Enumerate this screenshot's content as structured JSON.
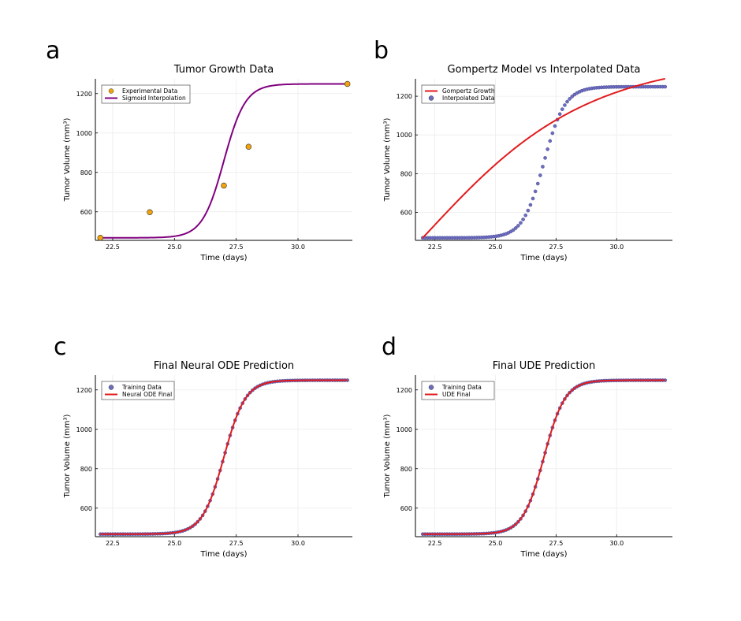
{
  "panels": [
    {
      "letter": "a"
    },
    {
      "letter": "b"
    },
    {
      "letter": "c"
    },
    {
      "letter": "d"
    }
  ],
  "colors": {
    "orange": "#f0a30a",
    "purple": "#800080",
    "red": "#e31a1c",
    "dot": "#6c6cc0",
    "grid": "#ececec"
  },
  "chart_data": [
    {
      "type": "line",
      "title": "Tumor Growth Data",
      "xlabel": "Time (days)",
      "ylabel": "Tumor Volume (mm³)",
      "xlim": [
        21.8,
        32.2
      ],
      "ylim": [
        455,
        1275
      ],
      "xticks": [
        22.5,
        25.0,
        27.5,
        30.0
      ],
      "xtick_labels": [
        "22.5",
        "25.0",
        "27.5",
        "30.0"
      ],
      "yticks": [
        600,
        800,
        1000,
        1200
      ],
      "ytick_labels": [
        "600",
        "800",
        "1000",
        "1200"
      ],
      "grid": true,
      "legend_position": "top-left",
      "series": [
        {
          "name": "Experimental Data",
          "kind": "scatter",
          "color": "#f0a30a",
          "x": [
            22,
            24,
            27,
            28,
            32
          ],
          "y": [
            468,
            598,
            733,
            930,
            1249
          ]
        },
        {
          "name": "Sigmoid Interpolation",
          "kind": "line",
          "color": "#800080",
          "curve": {
            "lower": 468,
            "upper": 1249,
            "midpoint": 27.0,
            "rate": 2.3,
            "x_start": 22,
            "x_end": 32,
            "points": 120
          }
        }
      ]
    },
    {
      "type": "line",
      "title": "Gompertz Model vs Interpolated Data",
      "xlabel": "Time (days)",
      "ylabel": "Tumor Volume (mm³)",
      "xlim": [
        21.7,
        32.3
      ],
      "ylim": [
        455,
        1290
      ],
      "xticks": [
        22.5,
        25.0,
        27.5,
        30.0
      ],
      "xtick_labels": [
        "22.5",
        "25.0",
        "27.5",
        "30.0"
      ],
      "yticks": [
        600,
        800,
        1000,
        1200
      ],
      "ytick_labels": [
        "600",
        "800",
        "1000",
        "1200"
      ],
      "grid": true,
      "legend_position": "top-left",
      "series": [
        {
          "name": "Gompertz Growth",
          "kind": "line",
          "color": "#e31a1c",
          "curve": {
            "model": "gompertz",
            "V0": 468,
            "K": 1400,
            "b": 0.26,
            "x_start": 22,
            "x_end": 32,
            "points": 120
          }
        },
        {
          "name": "Interpolated Data",
          "kind": "scatter",
          "color": "#6c6cc0",
          "curve": {
            "lower": 468,
            "upper": 1249,
            "midpoint": 27.0,
            "rate": 2.3,
            "x_start": 22,
            "x_end": 32,
            "points": 100
          }
        }
      ]
    },
    {
      "type": "line",
      "title": "Final Neural ODE Prediction",
      "xlabel": "Time (days)",
      "ylabel": "Tumor Volume (mm³)",
      "xlim": [
        21.8,
        32.2
      ],
      "ylim": [
        455,
        1275
      ],
      "xticks": [
        22.5,
        25.0,
        27.5,
        30.0
      ],
      "xtick_labels": [
        "22.5",
        "25.0",
        "27.5",
        "30.0"
      ],
      "yticks": [
        600,
        800,
        1000,
        1200
      ],
      "ytick_labels": [
        "600",
        "800",
        "1000",
        "1200"
      ],
      "grid": true,
      "legend_position": "top-left",
      "series": [
        {
          "name": "Training Data",
          "kind": "scatter",
          "color": "#6c6cc0",
          "curve": {
            "lower": 468,
            "upper": 1249,
            "midpoint": 27.0,
            "rate": 2.3,
            "x_start": 22,
            "x_end": 32,
            "points": 100
          }
        },
        {
          "name": "Neural ODE Final",
          "kind": "line",
          "color": "#e31a1c",
          "curve": {
            "lower": 468,
            "upper": 1249,
            "midpoint": 27.0,
            "rate": 2.3,
            "x_start": 22,
            "x_end": 32,
            "points": 120
          }
        }
      ]
    },
    {
      "type": "line",
      "title": "Final UDE Prediction",
      "xlabel": "Time (days)",
      "ylabel": "Tumor Volume (mm³)",
      "xlim": [
        21.7,
        32.3
      ],
      "ylim": [
        455,
        1275
      ],
      "xticks": [
        22.5,
        25.0,
        27.5,
        30.0
      ],
      "xtick_labels": [
        "22.5",
        "25.0",
        "27.5",
        "30.0"
      ],
      "yticks": [
        600,
        800,
        1000,
        1200
      ],
      "ytick_labels": [
        "600",
        "800",
        "1000",
        "1200"
      ],
      "grid": true,
      "legend_position": "top-left",
      "series": [
        {
          "name": "Training Data",
          "kind": "scatter",
          "color": "#6c6cc0",
          "curve": {
            "lower": 468,
            "upper": 1249,
            "midpoint": 27.0,
            "rate": 2.3,
            "x_start": 22,
            "x_end": 32,
            "points": 100
          }
        },
        {
          "name": "UDE Final",
          "kind": "line",
          "color": "#e31a1c",
          "curve": {
            "lower": 468,
            "upper": 1249,
            "midpoint": 27.0,
            "rate": 2.3,
            "x_start": 22,
            "x_end": 32,
            "points": 120
          }
        }
      ]
    }
  ]
}
